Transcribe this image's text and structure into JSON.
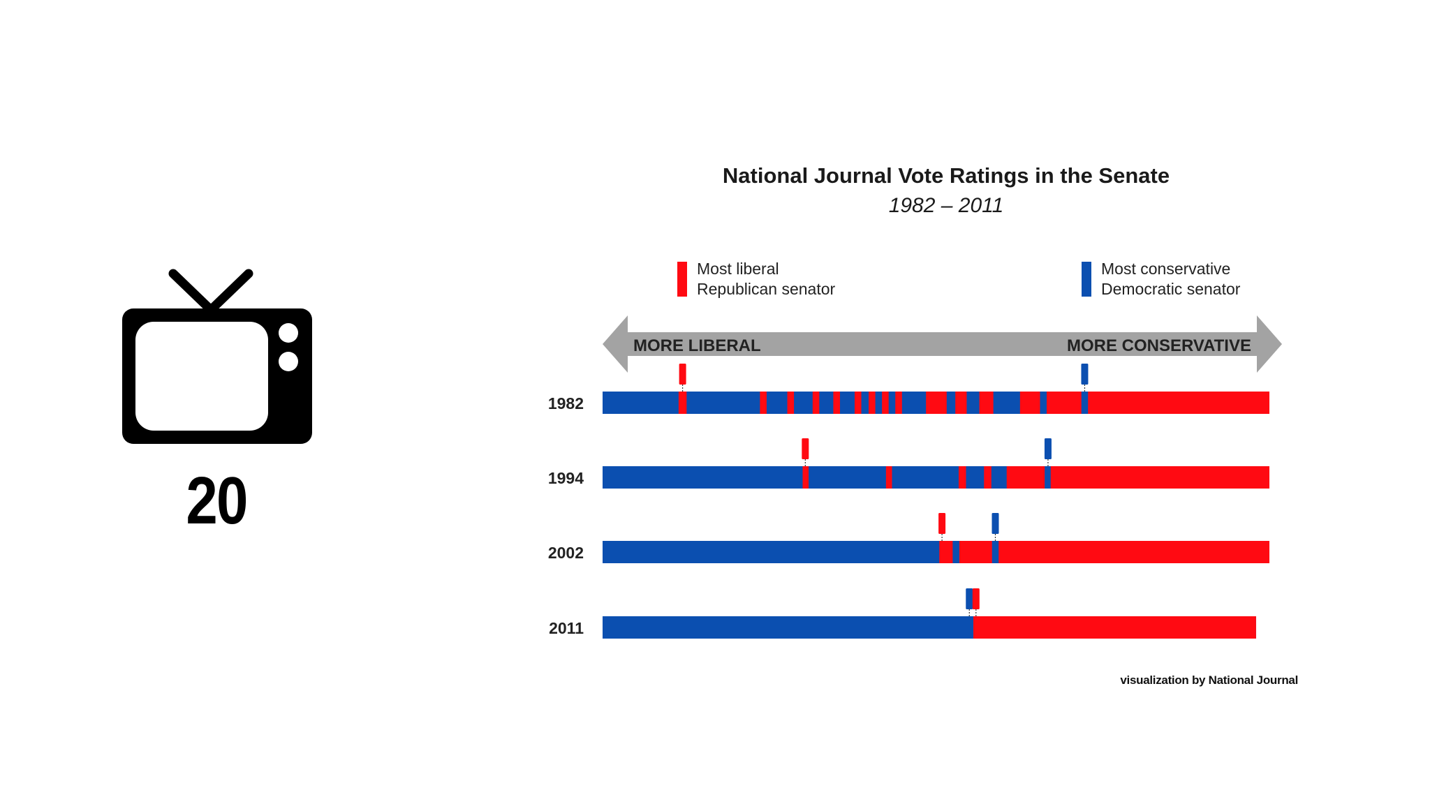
{
  "tv": {
    "icon": "television-icon",
    "number": "20"
  },
  "colors": {
    "liberal_blue": "#0b4fb0",
    "conservative_red": "#ff0a12",
    "arrow_gray": "#a3a3a3"
  },
  "credit": "visualization by National Journal",
  "chart_data": {
    "type": "bar",
    "title": "National Journal Vote Ratings in the Senate",
    "subtitle": "1982 – 2011",
    "legend": [
      {
        "label_line1": "Most liberal",
        "label_line2": "Republican senator",
        "color": "#ff0a12",
        "position": "top-left"
      },
      {
        "label_line1": "Most conservative",
        "label_line2": "Democratic senator",
        "color": "#0b4fb0",
        "position": "top-right"
      }
    ],
    "axis": {
      "left_label": "MORE LIBERAL",
      "right_label": "MORE CONSERVATIVE",
      "range": [
        0,
        100
      ]
    },
    "rows": [
      {
        "year": "1982",
        "extent": [
          0,
          100
        ],
        "segments": [
          {
            "party": "D",
            "from": 0,
            "to": 100
          },
          {
            "party": "R",
            "from": 11.4,
            "to": 12.6
          },
          {
            "party": "R",
            "from": 23.6,
            "to": 24.6
          },
          {
            "party": "R",
            "from": 27.7,
            "to": 28.7
          },
          {
            "party": "R",
            "from": 31.5,
            "to": 32.5
          },
          {
            "party": "R",
            "from": 34.6,
            "to": 35.6
          },
          {
            "party": "R",
            "from": 37.8,
            "to": 38.8
          },
          {
            "party": "R",
            "from": 39.9,
            "to": 40.9
          },
          {
            "party": "R",
            "from": 41.9,
            "to": 42.9
          },
          {
            "party": "R",
            "from": 43.9,
            "to": 44.9
          },
          {
            "party": "R",
            "from": 48.5,
            "to": 51.6
          },
          {
            "party": "R",
            "from": 52.9,
            "to": 54.6
          },
          {
            "party": "R",
            "from": 56.5,
            "to": 58.6
          },
          {
            "party": "R",
            "from": 62.6,
            "to": 65.6
          },
          {
            "party": "R",
            "from": 66.6,
            "to": 100
          },
          {
            "party": "D",
            "from": 71.8,
            "to": 72.8
          }
        ],
        "markers": [
          {
            "party": "R",
            "at": 12.0
          },
          {
            "party": "D",
            "at": 72.3
          }
        ]
      },
      {
        "year": "1994",
        "extent": [
          0,
          100
        ],
        "segments": [
          {
            "party": "D",
            "from": 0,
            "to": 100
          },
          {
            "party": "R",
            "from": 30.0,
            "to": 30.9
          },
          {
            "party": "R",
            "from": 42.5,
            "to": 43.4
          },
          {
            "party": "R",
            "from": 53.4,
            "to": 54.5
          },
          {
            "party": "R",
            "from": 57.2,
            "to": 58.3
          },
          {
            "party": "R",
            "from": 60.6,
            "to": 100
          },
          {
            "party": "D",
            "from": 66.3,
            "to": 67.2
          }
        ],
        "markers": [
          {
            "party": "R",
            "at": 30.4
          },
          {
            "party": "D",
            "at": 66.8
          }
        ]
      },
      {
        "year": "2002",
        "extent": [
          0,
          100
        ],
        "segments": [
          {
            "party": "D",
            "from": 0,
            "to": 100
          },
          {
            "party": "R",
            "from": 50.5,
            "to": 52.5
          },
          {
            "party": "R",
            "from": 53.5,
            "to": 100
          },
          {
            "party": "D",
            "from": 58.4,
            "to": 59.4
          }
        ],
        "markers": [
          {
            "party": "R",
            "at": 50.9
          },
          {
            "party": "D",
            "at": 58.9
          }
        ]
      },
      {
        "year": "2011",
        "extent": [
          0,
          98
        ],
        "segments": [
          {
            "party": "D",
            "from": 0,
            "to": 98
          },
          {
            "party": "R",
            "from": 55.6,
            "to": 98
          }
        ],
        "markers": [
          {
            "party": "D",
            "at": 55.0
          },
          {
            "party": "R",
            "at": 56.0
          }
        ]
      }
    ]
  }
}
